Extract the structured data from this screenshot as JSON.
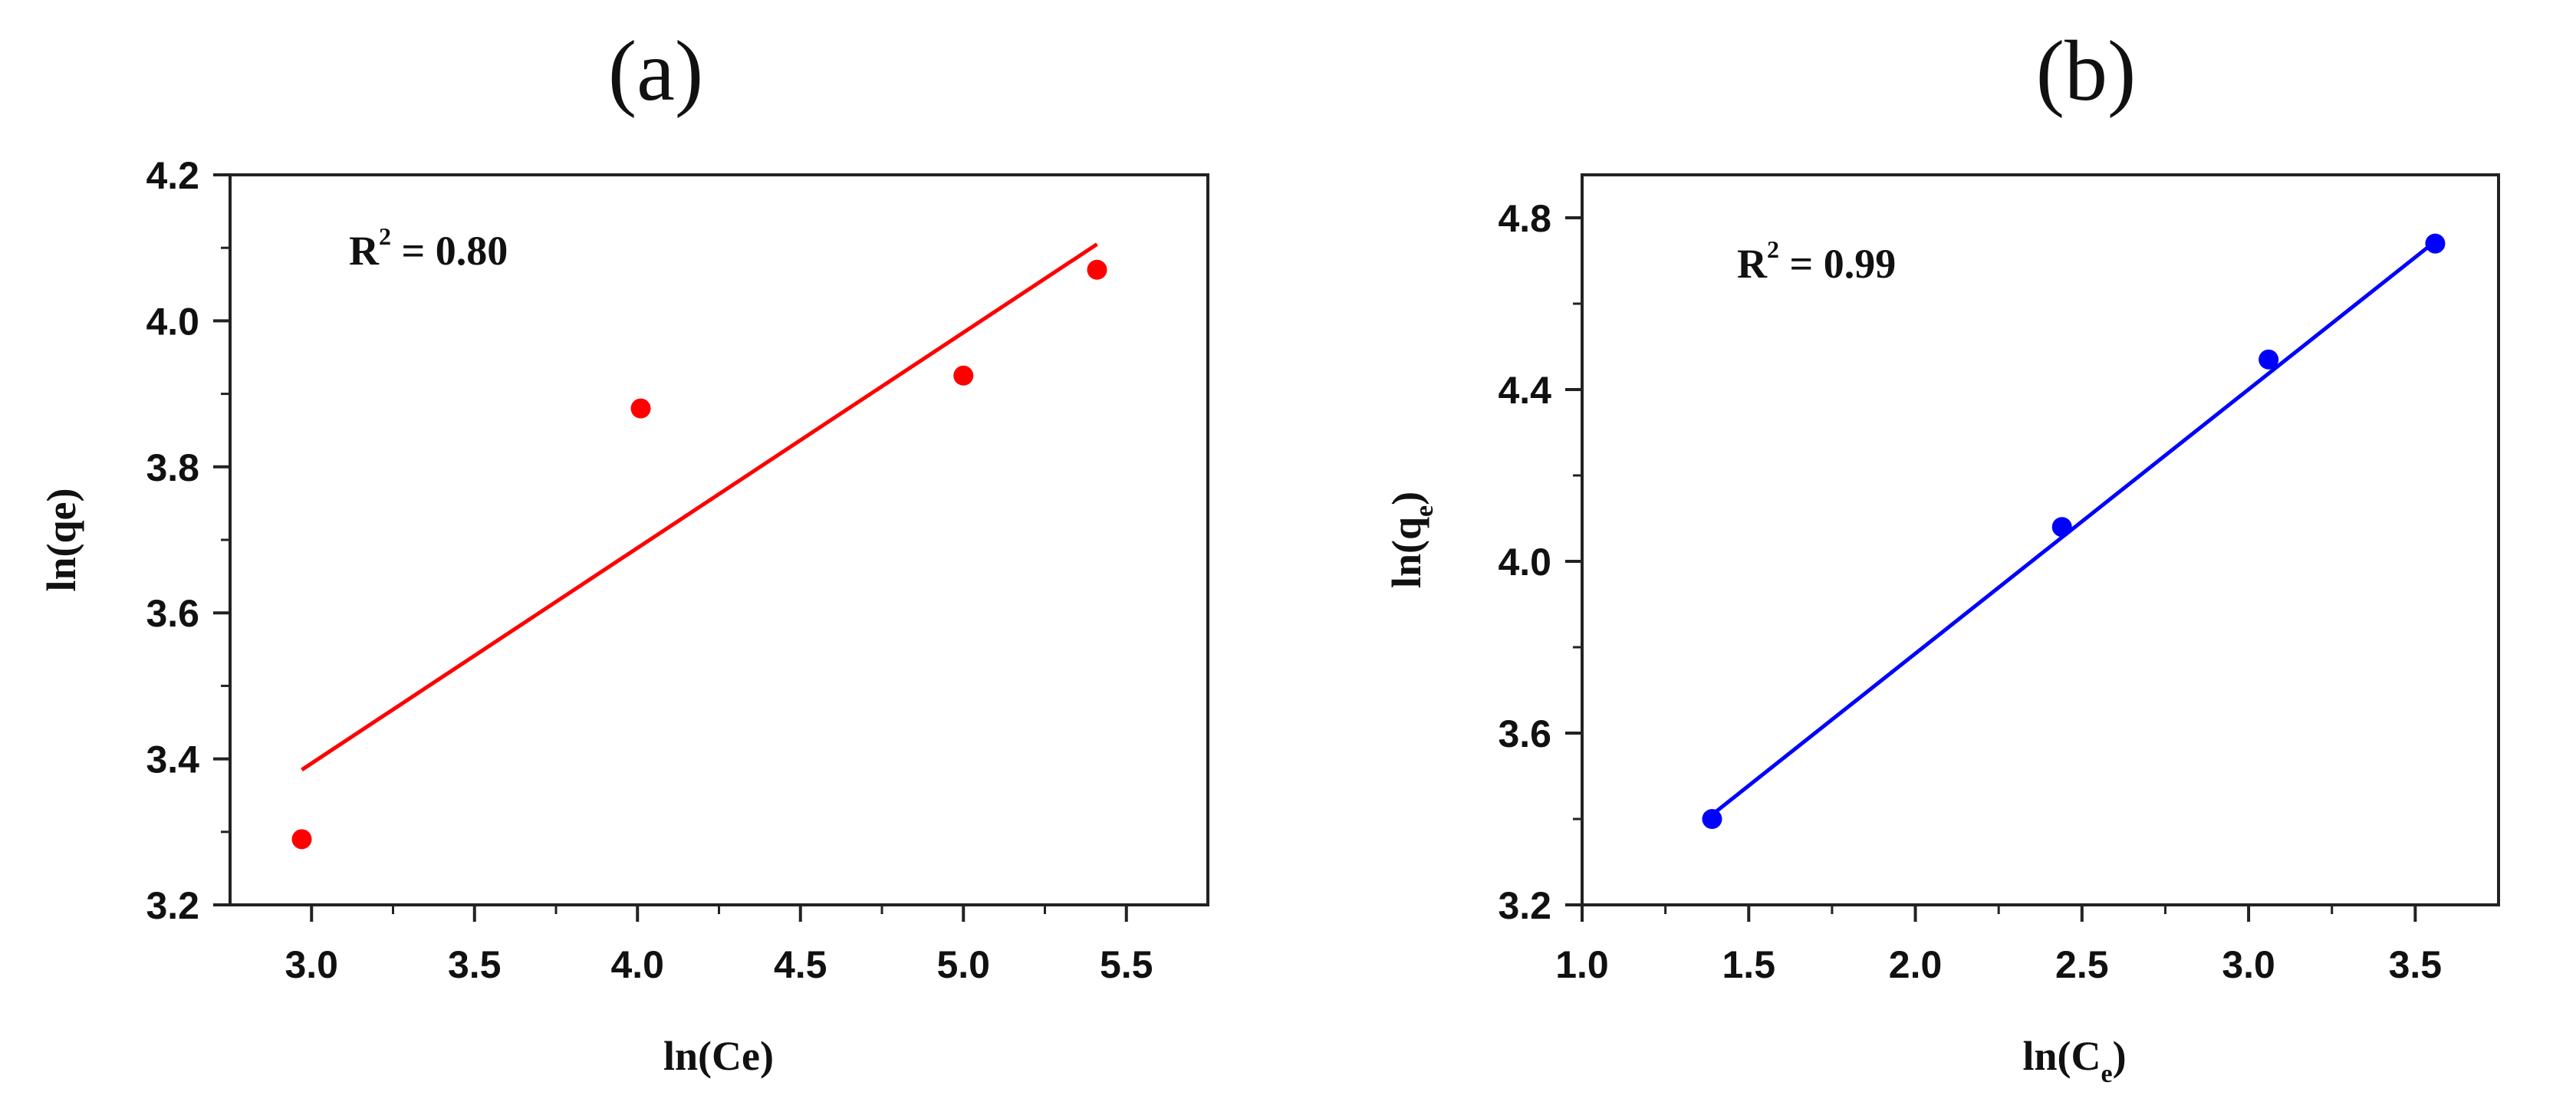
{
  "chart_data": [
    {
      "type": "scatter",
      "panel_label": "(a)",
      "xlabel": "ln(Ce)",
      "ylabel": "ln(qe)",
      "xlim": [
        2.75,
        5.75
      ],
      "ylim": [
        3.2,
        4.2
      ],
      "xticks": [
        3.0,
        3.5,
        4.0,
        4.5,
        5.0,
        5.5
      ],
      "xtick_labels": [
        "3.0",
        "3.5",
        "4.0",
        "4.5",
        "5.0",
        "5.5"
      ],
      "yticks": [
        3.2,
        3.4,
        3.6,
        3.8,
        4.0,
        4.2
      ],
      "ytick_labels": [
        "3.2",
        "3.4",
        "3.6",
        "3.8",
        "4.0",
        "4.2"
      ],
      "annotation": {
        "text": "R",
        "sup": "2",
        "rest": " = 0.80"
      },
      "color": "#ff0000",
      "points": [
        {
          "x": 2.97,
          "y": 3.29
        },
        {
          "x": 4.01,
          "y": 3.88
        },
        {
          "x": 5.0,
          "y": 3.925
        },
        {
          "x": 5.41,
          "y": 4.07
        }
      ],
      "fit_line": {
        "x": [
          2.97,
          5.41
        ],
        "y": [
          3.385,
          4.105
        ]
      }
    },
    {
      "type": "scatter",
      "panel_label": "(b)",
      "xlabel": "ln(C",
      "xlabel_sub": "e",
      "xlabel_end": ")",
      "ylabel": "ln(q",
      "ylabel_sub": "e",
      "ylabel_end": ")",
      "xlim": [
        1.0,
        3.75
      ],
      "ylim": [
        3.2,
        4.9
      ],
      "xticks": [
        1.0,
        1.5,
        2.0,
        2.5,
        3.0,
        3.5
      ],
      "xtick_labels": [
        "1.0",
        "1.5",
        "2.0",
        "2.5",
        "3.0",
        "3.5"
      ],
      "yticks": [
        3.2,
        3.6,
        4.0,
        4.4,
        4.8
      ],
      "ytick_labels": [
        "3.2",
        "3.6",
        "4.0",
        "4.4",
        "4.8"
      ],
      "annotation": {
        "text": "R",
        "sup": "2",
        "rest": " = 0.99"
      },
      "color": "#0000ff",
      "points": [
        {
          "x": 1.39,
          "y": 3.4
        },
        {
          "x": 2.44,
          "y": 4.08
        },
        {
          "x": 3.06,
          "y": 4.47
        },
        {
          "x": 3.56,
          "y": 4.74
        }
      ],
      "fit_line": {
        "x": [
          1.39,
          3.56
        ],
        "y": [
          3.41,
          4.745
        ]
      }
    }
  ]
}
